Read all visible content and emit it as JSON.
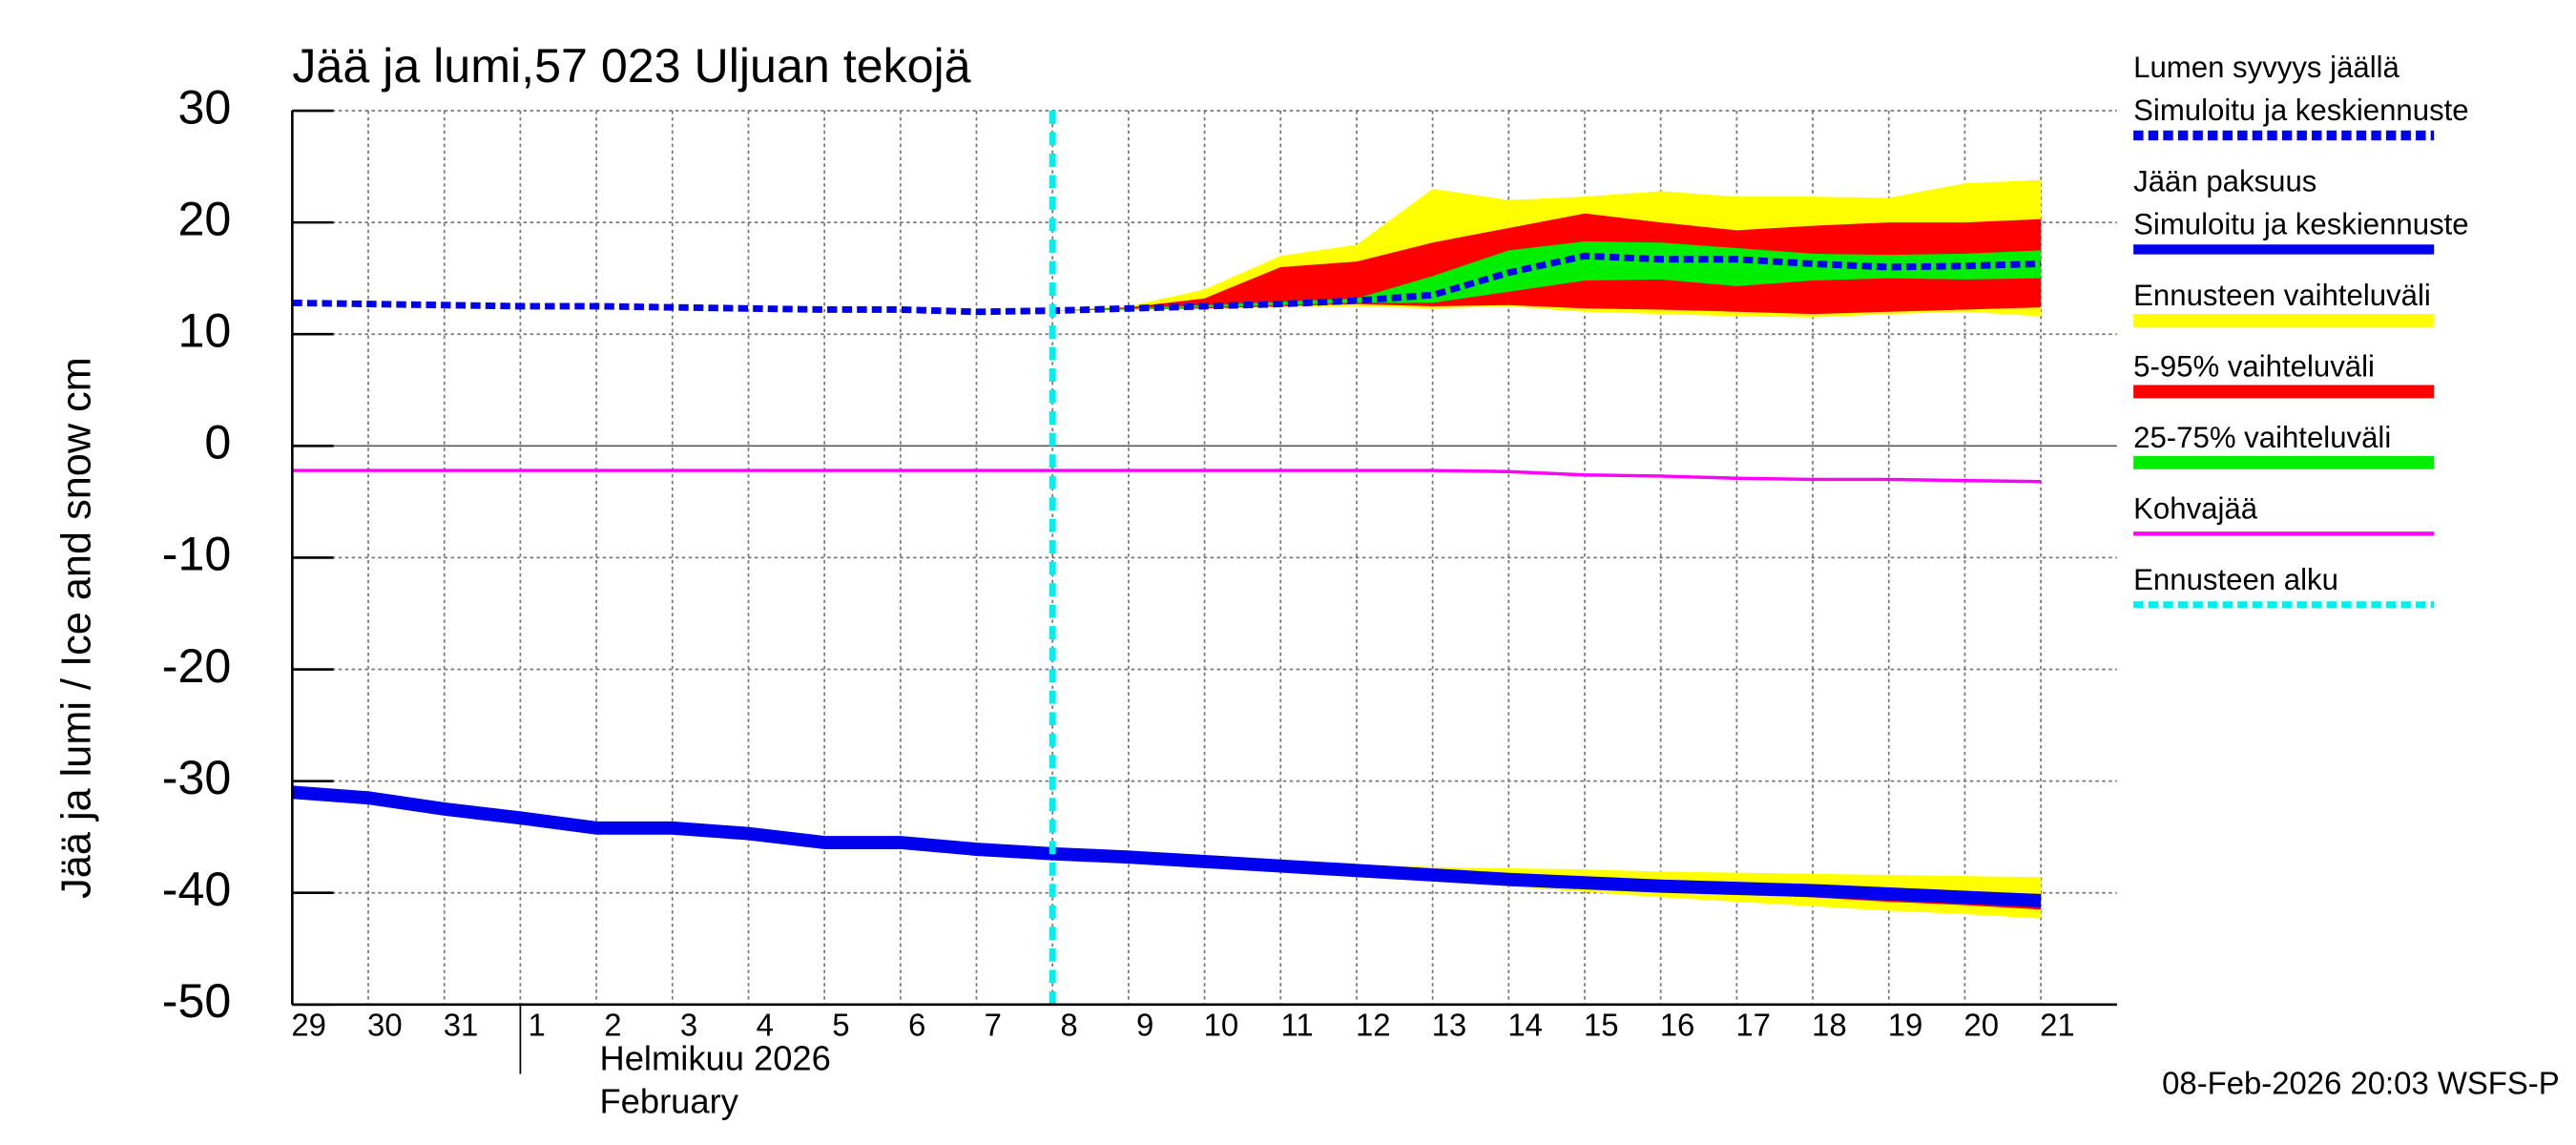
{
  "chart_data": {
    "type": "line",
    "title": "Jää ja lumi,57 023 Uljuan tekojä",
    "ylabel": "Jää ja lumi / Ice and snow    cm",
    "month_label": "Helmikuu  2026",
    "month_label_en": "February",
    "month_start": 3,
    "footer": "08-Feb-2026 20:03 WSFS-P",
    "categories": [
      "29",
      "30",
      "31",
      "1",
      "2",
      "3",
      "4",
      "5",
      "6",
      "7",
      "8",
      "9",
      "10",
      "11",
      "12",
      "13",
      "14",
      "15",
      "16",
      "17",
      "18",
      "19",
      "20",
      "21"
    ],
    "ylim": [
      -50,
      30
    ],
    "yticks": [
      30,
      20,
      10,
      0,
      -10,
      -20,
      -30,
      -40,
      -50
    ],
    "grid": true,
    "series": [
      {
        "title": "Lumen syvyys jäällä",
        "name": "Simuloitu ja keskiennuste",
        "color": "#0000ee",
        "style": "dashed",
        "width": 4,
        "values": [
          12.8,
          12.7,
          12.6,
          12.5,
          12.5,
          12.4,
          12.3,
          12.2,
          12.2,
          12.0,
          12.1,
          12.3,
          12.5,
          12.7,
          13.0,
          13.5,
          15.5,
          17.0,
          16.7,
          16.7,
          16.3,
          16.0,
          16.1,
          16.3
        ]
      },
      {
        "title": "Jään paksuus",
        "name": "Simuloitu ja keskiennuste",
        "color": "#0000ee",
        "style": "solid",
        "width": 8,
        "values": [
          -31.0,
          -31.5,
          -32.5,
          -33.3,
          -34.2,
          -34.2,
          -34.7,
          -35.5,
          -35.5,
          -36.1,
          -36.5,
          -36.8,
          -37.2,
          -37.6,
          -38.0,
          -38.4,
          -38.8,
          -39.1,
          -39.4,
          -39.6,
          -39.8,
          -40.1,
          -40.4,
          -40.7
        ]
      },
      {
        "name": "Kohvajää",
        "color": "#ff00ff",
        "style": "solid",
        "width": 2,
        "values": [
          -2.2,
          -2.2,
          -2.2,
          -2.2,
          -2.2,
          -2.2,
          -2.2,
          -2.2,
          -2.2,
          -2.2,
          -2.2,
          -2.2,
          -2.2,
          -2.2,
          -2.2,
          -2.2,
          -2.3,
          -2.6,
          -2.7,
          -2.9,
          -3.0,
          -3.0,
          -3.1,
          -3.2
        ]
      }
    ],
    "bands": [
      {
        "name": "Ennusteen vaihteluväli",
        "color": "#ffff00",
        "snow": {
          "upper": [
            null,
            null,
            null,
            null,
            null,
            null,
            null,
            null,
            null,
            null,
            12.1,
            12.5,
            14,
            17,
            18,
            23,
            22,
            22.3,
            22.8,
            22.3,
            22.3,
            22.2,
            23.5,
            23.8
          ],
          "lower": [
            null,
            null,
            null,
            null,
            null,
            null,
            null,
            null,
            null,
            null,
            12.1,
            12.2,
            12.3,
            12.4,
            12.5,
            12.3,
            12.5,
            12.0,
            11.8,
            11.6,
            11.5,
            11.8,
            12.0,
            11.6
          ]
        },
        "ice": {
          "upper": [
            null,
            null,
            null,
            null,
            null,
            null,
            null,
            null,
            null,
            null,
            -36.5,
            -36.8,
            -37.1,
            -37.3,
            -37.5,
            -37.7,
            -37.8,
            -37.9,
            -38.1,
            -38.2,
            -38.3,
            -38.4,
            -38.5,
            -38.6
          ],
          "lower": [
            null,
            null,
            null,
            null,
            null,
            null,
            null,
            null,
            null,
            null,
            -36.5,
            -36.8,
            -37.3,
            -37.8,
            -38.3,
            -38.9,
            -39.4,
            -39.9,
            -40.4,
            -40.8,
            -41.2,
            -41.6,
            -41.9,
            -42.3
          ]
        }
      },
      {
        "name": "5-95% vaihteluväli",
        "color": "#ff0000",
        "snow": {
          "upper": [
            null,
            null,
            null,
            null,
            null,
            null,
            null,
            null,
            null,
            null,
            12.1,
            12.4,
            13.2,
            16,
            16.5,
            18.2,
            19.5,
            20.8,
            20,
            19.3,
            19.7,
            20,
            20,
            20.3
          ],
          "lower": [
            null,
            null,
            null,
            null,
            null,
            null,
            null,
            null,
            null,
            null,
            12.1,
            12.2,
            12.3,
            12.5,
            12.7,
            12.5,
            12.6,
            12.3,
            12.2,
            12.0,
            11.8,
            12.0,
            12.2,
            12.4
          ]
        },
        "ice": {
          "upper": [
            null,
            null,
            null,
            null,
            null,
            null,
            null,
            null,
            null,
            null,
            -36.5,
            -36.8,
            -37.2,
            -37.5,
            -37.9,
            -38.2,
            -38.5,
            -38.8,
            -39.1,
            -39.3,
            -39.5,
            -39.7,
            -39.9,
            -40.1
          ],
          "lower": [
            null,
            null,
            null,
            null,
            null,
            null,
            null,
            null,
            null,
            null,
            -36.5,
            -36.8,
            -37.2,
            -37.7,
            -38.1,
            -38.6,
            -39.0,
            -39.4,
            -39.8,
            -40.1,
            -40.4,
            -40.8,
            -41.1,
            -41.5
          ]
        }
      },
      {
        "name": "25-75% vaihteluväli",
        "color": "#00ee00",
        "snow": {
          "upper": [
            null,
            null,
            null,
            null,
            null,
            null,
            null,
            null,
            null,
            null,
            12.1,
            12.3,
            12.6,
            12.9,
            13.2,
            15.2,
            17.5,
            18.3,
            18.2,
            17.7,
            17.2,
            17.1,
            17.2,
            17.5
          ],
          "lower": [
            null,
            null,
            null,
            null,
            null,
            null,
            null,
            null,
            null,
            null,
            12.1,
            12.2,
            12.4,
            12.6,
            12.8,
            12.8,
            13.8,
            14.8,
            14.9,
            14.3,
            14.8,
            15,
            14.9,
            15
          ]
        }
      }
    ],
    "forecast_start": {
      "name": "Ennusteen alku",
      "color": "#00eeee",
      "x": 10
    }
  }
}
